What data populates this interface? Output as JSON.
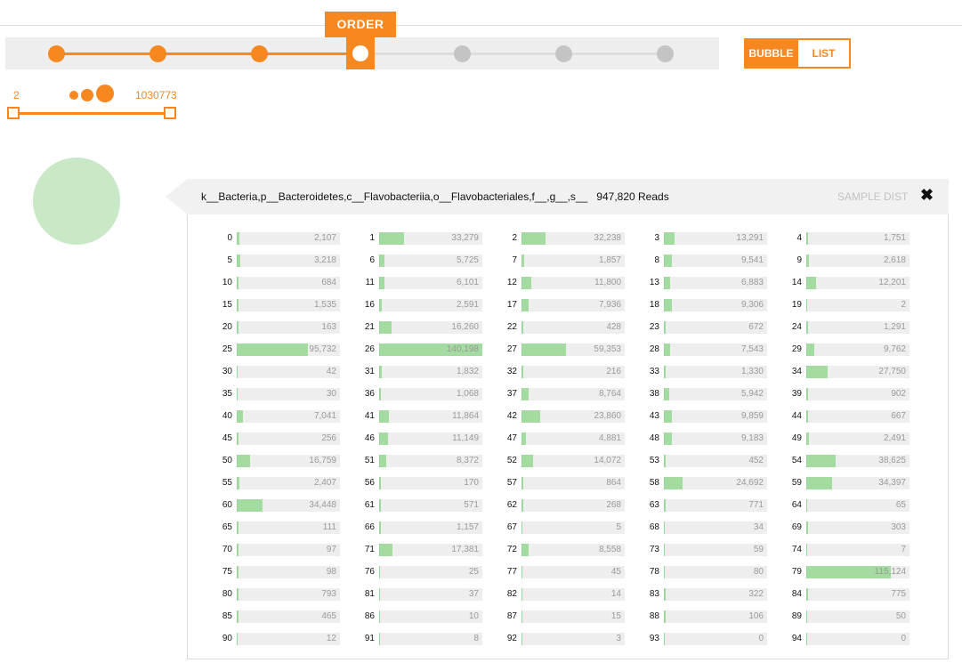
{
  "level_slider": {
    "label": "ORDER",
    "levels": 7,
    "current_index": 3
  },
  "view_toggle": {
    "bubble": "BUBBLE",
    "list": "LIST",
    "active": "bubble"
  },
  "size_range": {
    "min": "2",
    "max": "1030773"
  },
  "colors": {
    "accent": "#f7871f",
    "bar": "#a4dba0",
    "bubble": "#c8e8c6"
  },
  "detail": {
    "taxon": "k__Bacteria,p__Bacteroidetes,c__Flavobacteriia,o__Flavobacteriales,f__,g__,s__",
    "reads": "947,820 Reads",
    "tab_label": "SAMPLE DIST",
    "close_icon": "close-icon",
    "samples": [
      [
        "0",
        "2,107"
      ],
      [
        "1",
        "33,279"
      ],
      [
        "2",
        "32,238"
      ],
      [
        "3",
        "13,291"
      ],
      [
        "4",
        "1,751"
      ],
      [
        "5",
        "3,218"
      ],
      [
        "6",
        "5,725"
      ],
      [
        "7",
        "1,857"
      ],
      [
        "8",
        "9,541"
      ],
      [
        "9",
        "2,618"
      ],
      [
        "10",
        "684"
      ],
      [
        "11",
        "6,101"
      ],
      [
        "12",
        "11,800"
      ],
      [
        "13",
        "6,883"
      ],
      [
        "14",
        "12,201"
      ],
      [
        "15",
        "1,535"
      ],
      [
        "16",
        "2,591"
      ],
      [
        "17",
        "7,936"
      ],
      [
        "18",
        "9,306"
      ],
      [
        "19",
        "2"
      ],
      [
        "20",
        "163"
      ],
      [
        "21",
        "16,260"
      ],
      [
        "22",
        "428"
      ],
      [
        "23",
        "672"
      ],
      [
        "24",
        "1,291"
      ],
      [
        "25",
        "95,732"
      ],
      [
        "26",
        "140,198"
      ],
      [
        "27",
        "59,353"
      ],
      [
        "28",
        "7,543"
      ],
      [
        "29",
        "9,762"
      ],
      [
        "30",
        "42"
      ],
      [
        "31",
        "1,832"
      ],
      [
        "32",
        "216"
      ],
      [
        "33",
        "1,330"
      ],
      [
        "34",
        "27,750"
      ],
      [
        "35",
        "30"
      ],
      [
        "36",
        "1,068"
      ],
      [
        "37",
        "8,764"
      ],
      [
        "38",
        "5,942"
      ],
      [
        "39",
        "902"
      ],
      [
        "40",
        "7,041"
      ],
      [
        "41",
        "11,864"
      ],
      [
        "42",
        "23,860"
      ],
      [
        "43",
        "9,859"
      ],
      [
        "44",
        "667"
      ],
      [
        "45",
        "256"
      ],
      [
        "46",
        "11,149"
      ],
      [
        "47",
        "4,881"
      ],
      [
        "48",
        "9,183"
      ],
      [
        "49",
        "2,491"
      ],
      [
        "50",
        "16,759"
      ],
      [
        "51",
        "8,372"
      ],
      [
        "52",
        "14,072"
      ],
      [
        "53",
        "452"
      ],
      [
        "54",
        "38,625"
      ],
      [
        "55",
        "2,407"
      ],
      [
        "56",
        "170"
      ],
      [
        "57",
        "864"
      ],
      [
        "58",
        "24,692"
      ],
      [
        "59",
        "34,397"
      ],
      [
        "60",
        "34,448"
      ],
      [
        "61",
        "571"
      ],
      [
        "62",
        "268"
      ],
      [
        "63",
        "771"
      ],
      [
        "64",
        "65"
      ],
      [
        "65",
        "111"
      ],
      [
        "66",
        "1,157"
      ],
      [
        "67",
        "5"
      ],
      [
        "68",
        "34"
      ],
      [
        "69",
        "303"
      ],
      [
        "70",
        "97"
      ],
      [
        "71",
        "17,381"
      ],
      [
        "72",
        "8,558"
      ],
      [
        "73",
        "59"
      ],
      [
        "74",
        "7"
      ],
      [
        "75",
        "98"
      ],
      [
        "76",
        "25"
      ],
      [
        "77",
        "45"
      ],
      [
        "78",
        "80"
      ],
      [
        "79",
        "115,124"
      ],
      [
        "80",
        "793"
      ],
      [
        "81",
        "37"
      ],
      [
        "82",
        "14"
      ],
      [
        "83",
        "322"
      ],
      [
        "84",
        "775"
      ],
      [
        "85",
        "465"
      ],
      [
        "86",
        "10"
      ],
      [
        "87",
        "15"
      ],
      [
        "88",
        "106"
      ],
      [
        "89",
        "50"
      ],
      [
        "90",
        "12"
      ],
      [
        "91",
        "8"
      ],
      [
        "92",
        "3"
      ],
      [
        "93",
        "0"
      ],
      [
        "94",
        "0"
      ]
    ]
  }
}
